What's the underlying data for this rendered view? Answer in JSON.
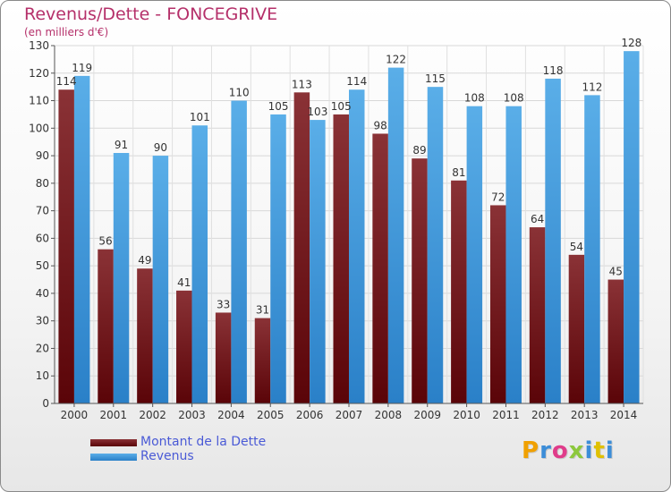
{
  "title": "Revenus/Dette - FONCEGRIVE",
  "subtitle": "(en milliers d'€)",
  "logo": {
    "text": "Proxiti",
    "colors": [
      "#f0a000",
      "#3c8dd8",
      "#e03c8a",
      "#8cc83c",
      "#3c8dd8",
      "#e0c000",
      "#3c8dd8"
    ]
  },
  "colors": {
    "dette": "#7a1a1f",
    "revenus": "#3c96dc",
    "title": "#b5306a",
    "legend_text": "#4a5ad6"
  },
  "chart_data": {
    "type": "bar",
    "categories": [
      "2000",
      "2001",
      "2002",
      "2003",
      "2004",
      "2005",
      "2006",
      "2007",
      "2008",
      "2009",
      "2010",
      "2011",
      "2012",
      "2013",
      "2014"
    ],
    "series": [
      {
        "name": "Montant de la Dette",
        "values": [
          114,
          56,
          49,
          41,
          33,
          31,
          113,
          105,
          98,
          89,
          81,
          72,
          64,
          54,
          45
        ]
      },
      {
        "name": "Revenus",
        "values": [
          119,
          91,
          90,
          101,
          110,
          105,
          103,
          114,
          122,
          115,
          108,
          108,
          118,
          112,
          128
        ]
      }
    ],
    "ylim": [
      0,
      130
    ],
    "yticks": [
      0,
      10,
      20,
      30,
      40,
      50,
      60,
      70,
      80,
      90,
      100,
      110,
      120,
      130
    ],
    "grid": true,
    "legend": "bottom-left"
  }
}
